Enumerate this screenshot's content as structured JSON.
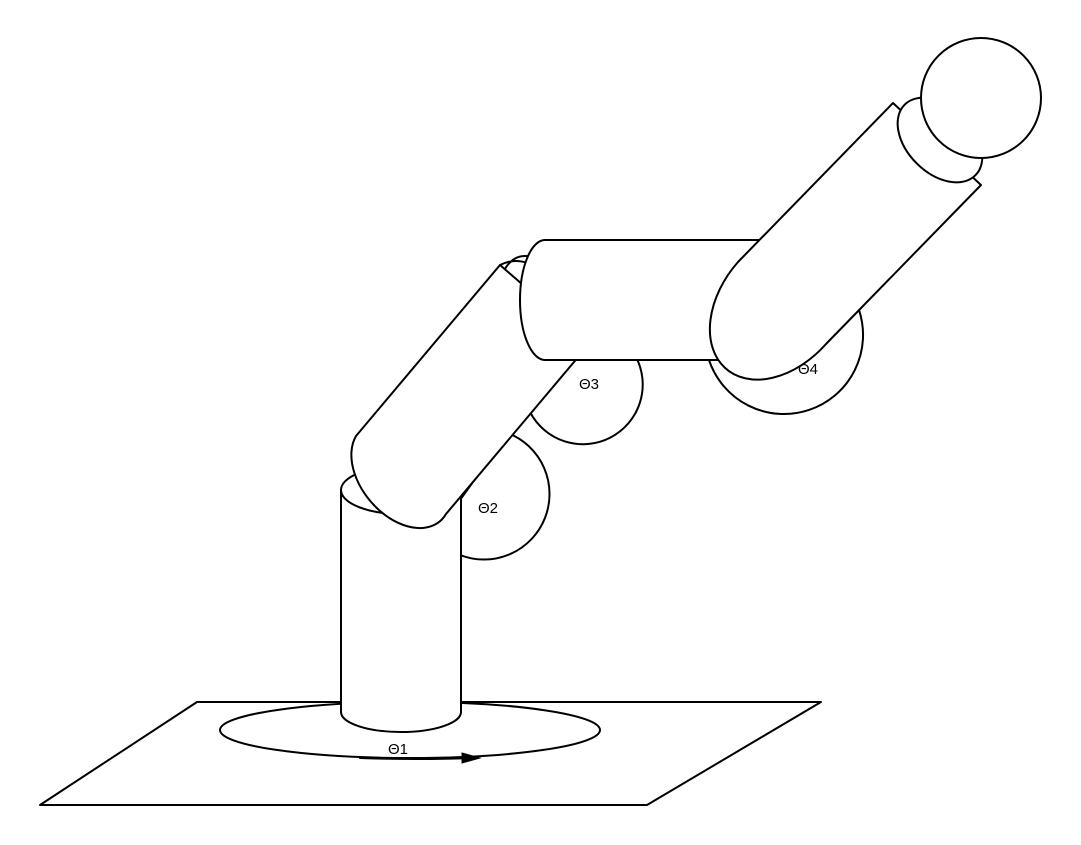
{
  "diagram": {
    "joints": {
      "theta1": "Θ1",
      "theta2": "Θ2",
      "theta3": "Θ3",
      "theta4": "Θ4"
    },
    "colors": {
      "stroke": "#000000",
      "fill": "#ffffff",
      "background": "#ffffff"
    }
  }
}
